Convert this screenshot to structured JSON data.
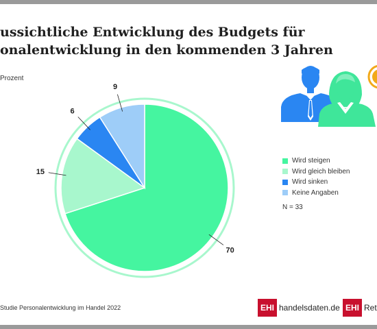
{
  "title_lines": [
    "ussichtliche Entwicklung des Budgets für",
    "onalentwicklung in den kommenden 3 Jahren"
  ],
  "unit_label": "Prozent",
  "n_note": "N = 33",
  "source": "Studie Personalentwicklung im Handel 2022",
  "logos": [
    {
      "badge": "EHI",
      "text": "handelsdaten.de"
    },
    {
      "badge": "EHI",
      "text": "Retai"
    }
  ],
  "colors": {
    "steigen": "#45f5a0",
    "gleich": "#a8f7cd",
    "sinken": "#2a86f2",
    "keine": "#9ecdf8",
    "people_blue": "#2a86f2",
    "people_green": "#3fe69a",
    "accent_gold": "#f2a91a"
  },
  "chart_data": {
    "type": "pie",
    "categories": [
      "Wird steigen",
      "Wird gleich bleiben",
      "Wird sinken",
      "Keine Angaben"
    ],
    "values": [
      70,
      15,
      6,
      9
    ],
    "data_labels": [
      "70",
      "15",
      "6",
      "9"
    ],
    "legend_placement": "right"
  }
}
